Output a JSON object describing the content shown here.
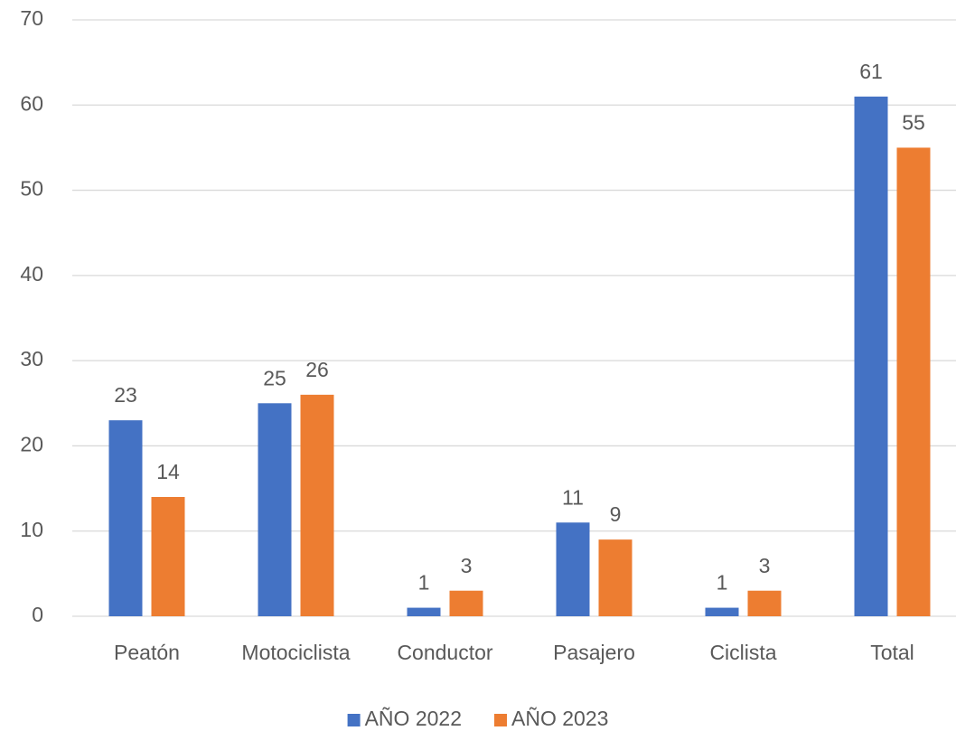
{
  "chart_data": {
    "type": "bar",
    "categories": [
      "Peatón",
      "Motociclista",
      "Conductor",
      "Pasajero",
      "Ciclista",
      "Total"
    ],
    "series": [
      {
        "name": "AÑO 2022",
        "color": "#4472c4",
        "values": [
          23,
          25,
          1,
          11,
          1,
          61
        ]
      },
      {
        "name": "AÑO 2023",
        "color": "#ed7d31",
        "values": [
          14,
          26,
          3,
          9,
          3,
          55
        ]
      }
    ],
    "ylim": [
      0,
      70
    ],
    "yticks": [
      0,
      10,
      20,
      30,
      40,
      50,
      60,
      70
    ],
    "grid": true,
    "legend": "bottom"
  }
}
